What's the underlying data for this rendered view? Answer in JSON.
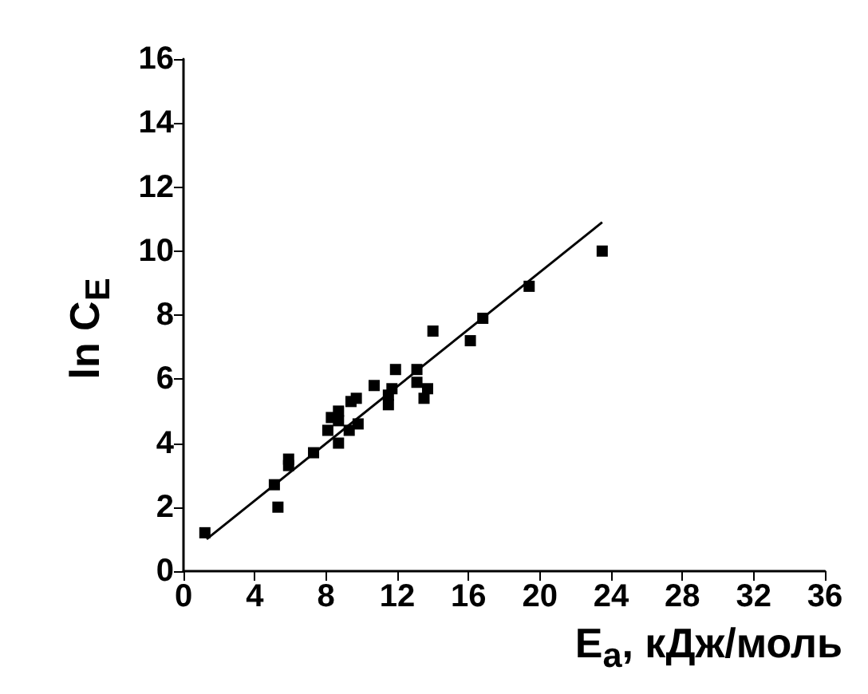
{
  "chart_data": {
    "type": "scatter",
    "xlabel": "E$_{a}$, кДж/моль",
    "ylabel": "ln C$_{E}$",
    "marker": "square",
    "grid": false,
    "xlim": [
      0,
      36
    ],
    "xticks": [
      0,
      4,
      8,
      12,
      16,
      20,
      24,
      28,
      32,
      36
    ],
    "ylim": [
      0,
      16
    ],
    "yticks": [
      0,
      2,
      4,
      6,
      8,
      10,
      12,
      14,
      16
    ],
    "series": [
      {
        "color": "#000000",
        "x": [
          1.2,
          5.1,
          5.3,
          5.9,
          5.9,
          7.3,
          8.1,
          8.3,
          8.7,
          8.7,
          8.7,
          9.3,
          9.4,
          9.7,
          9.8,
          10.7,
          11.5,
          11.5,
          11.7,
          11.9,
          13.1,
          13.1,
          13.5,
          13.7,
          14.0,
          16.1,
          16.8,
          19.4,
          23.5
        ],
        "values": [
          1.2,
          2.7,
          2.0,
          3.3,
          3.5,
          3.7,
          4.4,
          4.8,
          5.0,
          4.7,
          4.0,
          4.4,
          5.3,
          5.4,
          4.6,
          5.8,
          5.2,
          5.5,
          5.7,
          6.3,
          6.3,
          5.9,
          5.4,
          5.7,
          7.5,
          7.2,
          7.9,
          8.9,
          10.0
        ]
      },
      {
        "type": "line",
        "color": "#000000",
        "marker": "none",
        "x": [
          1.3,
          23.5
        ],
        "values": [
          1.0,
          10.9
        ]
      }
    ]
  }
}
